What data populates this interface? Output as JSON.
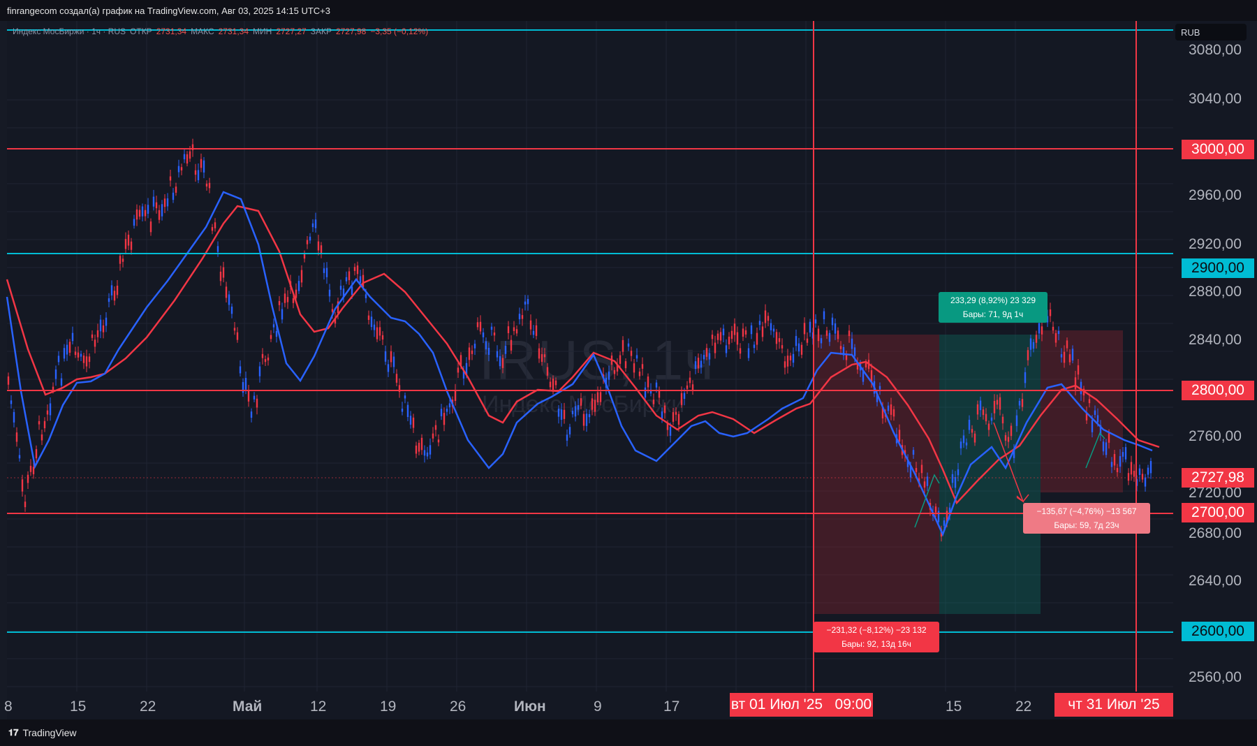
{
  "header": {
    "title": "finrangecom создал(а) график на TradingView.com, Авг 03, 2025 14:15 UTC+3"
  },
  "legend": {
    "name": "Индекс МосБиржи · 1ч · RUS",
    "open_label": "ОТКР",
    "open": "2731,34",
    "high_label": "МАКС",
    "high": "2731,34",
    "low_label": "МИН",
    "low": "2727,27",
    "close_label": "ЗАКР",
    "close": "2727,98",
    "change": "−3,35 (−0,12%)"
  },
  "currency": "RUB",
  "watermark": {
    "symbol": "IRUS, 1ч",
    "name": "Индекс МосБиржи"
  },
  "colors": {
    "background": "#141823",
    "red": "#f23645",
    "cyan": "#00bcd4",
    "blue": "#2962ff",
    "green_box": "#089981"
  },
  "price_axis": {
    "ticks": [
      "3080,00",
      "3040,00",
      "2960,00",
      "2920,00",
      "2880,00",
      "2840,00",
      "2760,00",
      "2720,00",
      "2680,00",
      "2640,00",
      "2560,00"
    ],
    "labels": [
      {
        "text": "3000,00",
        "color": "red"
      },
      {
        "text": "2900,00",
        "color": "cyan"
      },
      {
        "text": "2800,00",
        "color": "red"
      },
      {
        "text": "2727,98",
        "color": "red"
      },
      {
        "text": "2700,00",
        "color": "red"
      },
      {
        "text": "2600,00",
        "color": "cyan"
      }
    ]
  },
  "time_axis": {
    "ticks": [
      "8",
      "15",
      "22",
      "Май",
      "12",
      "19",
      "26",
      "Июн",
      "9",
      "17",
      "15",
      "22"
    ],
    "markers": [
      "вт 01 Июл '25   09:00",
      "чт 31 Июл '25"
    ]
  },
  "horizontal_levels": [
    {
      "price": 3000,
      "color": "red"
    },
    {
      "price": 2900,
      "color": "cyan"
    },
    {
      "price": 2800,
      "color": "red"
    },
    {
      "price": 2700,
      "color": "red"
    },
    {
      "price": 2600,
      "color": "cyan"
    },
    {
      "price": 3100,
      "color": "cyan"
    }
  ],
  "measures": [
    {
      "line1": "−231,32 (−8,12%) −23 132",
      "line2": "Бары: 92, 13д 16ч"
    },
    {
      "line1": "233,29 (8,92%) 23 329",
      "line2": "Бары: 71, 9д 1ч"
    },
    {
      "line1": "−135,67 (−4,76%) −13 567",
      "line2": "Бары: 59, 7д 23ч"
    }
  ],
  "footer": {
    "brand": "TradingView"
  }
}
